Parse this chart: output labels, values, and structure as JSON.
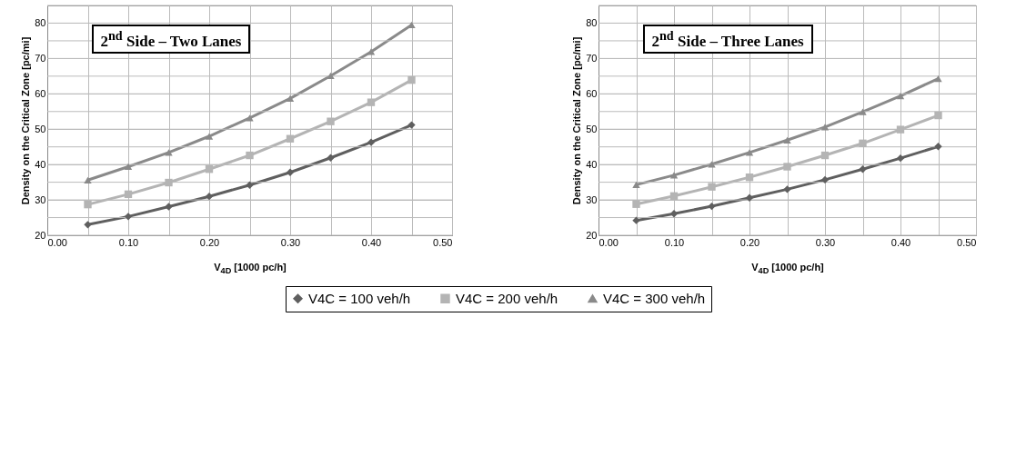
{
  "chart_data": [
    {
      "type": "line",
      "title": "2$^{nd}$ Side – Two Lanes",
      "xlabel": "V$_{4D}$ [1000 pc/h]",
      "ylabel": "Density on the Critical Zone [pc/mi]",
      "x": [
        0.05,
        0.1,
        0.15,
        0.2,
        0.25,
        0.3,
        0.35,
        0.4,
        0.45
      ],
      "series": [
        {
          "name": "V4C = 100 veh/h",
          "color": "#5f5f5f",
          "marker": "diamond",
          "values": [
            23,
            25.3,
            28.1,
            31,
            34.2,
            37.8,
            41.9,
            46.3,
            51.2
          ]
        },
        {
          "name": "V4C = 200 veh/h",
          "color": "#b4b4b4",
          "marker": "square",
          "values": [
            28.7,
            31.6,
            34.9,
            38.7,
            42.6,
            47.3,
            52.2,
            57.6,
            63.9
          ]
        },
        {
          "name": "V4C = 300 veh/h",
          "color": "#8a8a8a",
          "marker": "triangle",
          "values": [
            35.6,
            39.4,
            43.4,
            48,
            53.2,
            58.7,
            65.1,
            71.9,
            79.5
          ]
        }
      ],
      "xlim": [
        0,
        0.5
      ],
      "xticks": [
        {
          "value": 0,
          "label": "0.00"
        },
        {
          "value": 0.05,
          "label": null
        },
        {
          "value": 0.1,
          "label": "0.10"
        },
        {
          "value": 0.15,
          "label": null
        },
        {
          "value": 0.2,
          "label": "0.20"
        },
        {
          "value": 0.25,
          "label": null
        },
        {
          "value": 0.3,
          "label": "0.30"
        },
        {
          "value": 0.35,
          "label": null
        },
        {
          "value": 0.4,
          "label": "0.40"
        },
        {
          "value": 0.45,
          "label": null
        },
        {
          "value": 0.5,
          "label": "0.50"
        }
      ],
      "ylim": [
        20,
        85
      ],
      "yticks": [
        20,
        {
          "value": 25,
          "label": null
        },
        30,
        {
          "value": 35,
          "label": null
        },
        40,
        {
          "value": 45,
          "label": null
        },
        50,
        {
          "value": 55,
          "label": null
        },
        60,
        {
          "value": 65,
          "label": null
        },
        70,
        {
          "value": 75,
          "label": null
        },
        80,
        {
          "value": 85,
          "label": null
        }
      ],
      "grid": true,
      "legend": "bottom",
      "line_style": "solid"
    },
    {
      "type": "line",
      "title": "2$^{nd}$ Side – Three Lanes",
      "xlabel": "V$_{4D}$ [1000 pc/h]",
      "ylabel": "Density on the Critical Zone [pc/mi]",
      "x": [
        0.05,
        0.1,
        0.15,
        0.2,
        0.25,
        0.3,
        0.35,
        0.4,
        0.45
      ],
      "series": [
        {
          "name": "V4C = 100 veh/h",
          "color": "#5f5f5f",
          "marker": "diamond",
          "values": [
            24.2,
            26.1,
            28.2,
            30.6,
            33,
            35.7,
            38.7,
            41.8,
            45.1
          ]
        },
        {
          "name": "V4C = 200 veh/h",
          "color": "#b4b4b4",
          "marker": "square",
          "values": [
            28.8,
            31.1,
            33.7,
            36.4,
            39.4,
            42.6,
            46,
            49.9,
            53.9
          ]
        },
        {
          "name": "V4C = 300 veh/h",
          "color": "#8a8a8a",
          "marker": "triangle",
          "values": [
            34.3,
            37,
            40.1,
            43.4,
            46.9,
            50.6,
            54.9,
            59.4,
            64.3
          ]
        }
      ],
      "xlim": [
        0,
        0.5
      ],
      "xticks": [
        {
          "value": 0,
          "label": "0.00"
        },
        {
          "value": 0.05,
          "label": null
        },
        {
          "value": 0.1,
          "label": "0.10"
        },
        {
          "value": 0.15,
          "label": null
        },
        {
          "value": 0.2,
          "label": "0.20"
        },
        {
          "value": 0.25,
          "label": null
        },
        {
          "value": 0.3,
          "label": "0.30"
        },
        {
          "value": 0.35,
          "label": null
        },
        {
          "value": 0.4,
          "label": "0.40"
        },
        {
          "value": 0.45,
          "label": null
        },
        {
          "value": 0.5,
          "label": "0.50"
        }
      ],
      "ylim": [
        20,
        85
      ],
      "yticks": [
        20,
        {
          "value": 25,
          "label": null
        },
        30,
        {
          "value": 35,
          "label": null
        },
        40,
        {
          "value": 45,
          "label": null
        },
        50,
        {
          "value": 55,
          "label": null
        },
        60,
        {
          "value": 65,
          "label": null
        },
        70,
        {
          "value": 75,
          "label": null
        },
        80,
        {
          "value": 85,
          "label": null
        }
      ],
      "grid": true,
      "legend": "bottom",
      "line_style": "solid"
    }
  ]
}
